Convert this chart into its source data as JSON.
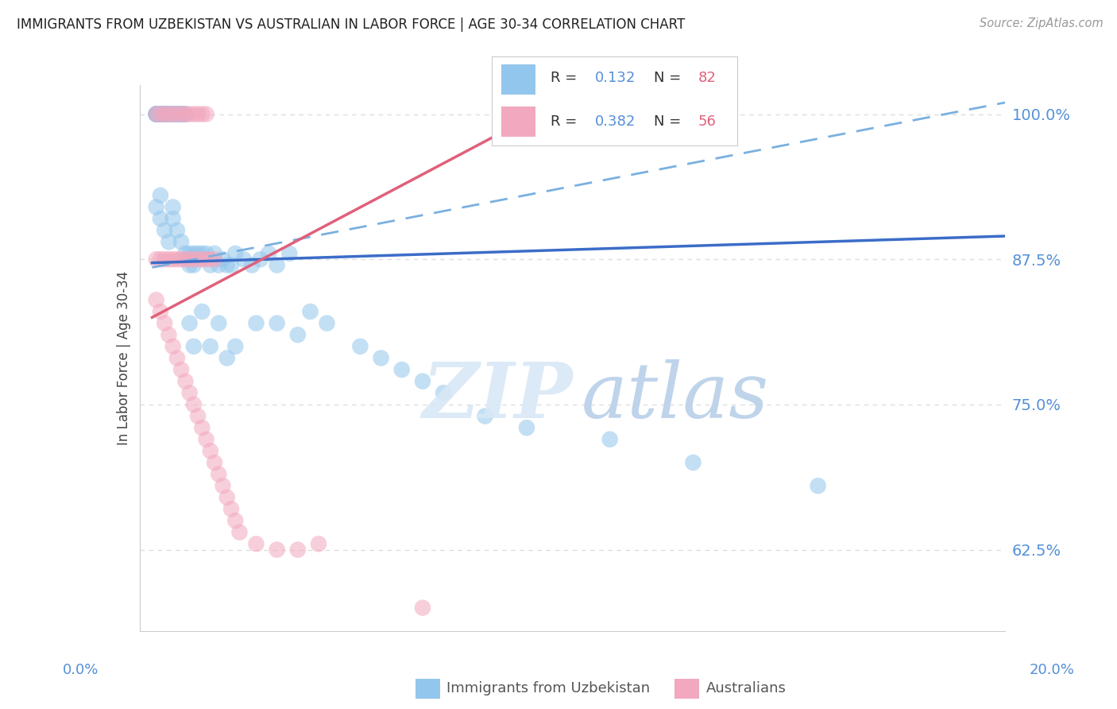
{
  "title": "IMMIGRANTS FROM UZBEKISTAN VS AUSTRALIAN IN LABOR FORCE | AGE 30-34 CORRELATION CHART",
  "source": "Source: ZipAtlas.com",
  "ylabel": "In Labor Force | Age 30-34",
  "ytick_vals": [
    0.625,
    0.75,
    0.875,
    1.0
  ],
  "ytick_labels": [
    "62.5%",
    "75.0%",
    "87.5%",
    "100.0%"
  ],
  "legend_label_blue": "Immigrants from Uzbekistan",
  "legend_label_pink": "Australians",
  "R_blue": 0.132,
  "N_blue": 82,
  "R_pink": 0.382,
  "N_pink": 56,
  "blue_color": "#93C6EC",
  "pink_color": "#F2A8BE",
  "blue_line_color": "#3B6CC8",
  "pink_line_color": "#E0607A",
  "dashed_line_color": "#7AB0E0",
  "watermark_zip_color": "#D8E8F5",
  "watermark_atlas_color": "#B8D0E8",
  "bg_color": "#FFFFFF",
  "grid_color": "#DDDDDD",
  "axis_color": "#CCCCCC",
  "tick_label_color": "#5590D8",
  "ylabel_color": "#444444",
  "title_color": "#222222",
  "source_color": "#999999",
  "legend_text_color": "#333333",
  "ylim_low": 0.555,
  "ylim_high": 1.025,
  "xlim_low": -0.003,
  "xlim_high": 0.205,
  "blue_line_x0": 0.0,
  "blue_line_x1": 0.205,
  "blue_line_y0": 0.872,
  "blue_line_y1": 0.895,
  "dashed_line_x0": 0.0,
  "dashed_line_x1": 0.205,
  "dashed_line_y0": 0.868,
  "dashed_line_y1": 1.01,
  "pink_line_x0": 0.0,
  "pink_line_x1": 0.095,
  "pink_line_y0": 0.825,
  "pink_line_y1": 1.005
}
